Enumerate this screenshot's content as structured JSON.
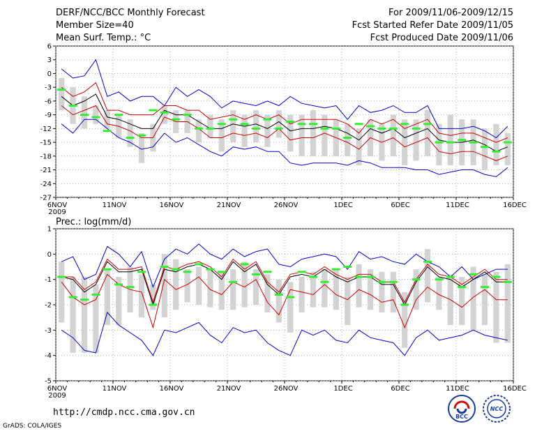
{
  "header": {
    "title": "DERF/NCC/BCC Monthly Forecast",
    "member_size": "Member Size=40",
    "for_period": "For 2009/11/06-2009/12/15",
    "fcst_started": "Fcst Started Refer Date 2009/11/05",
    "fcst_produced": "Fcst Produced Date 2009/11/06"
  },
  "footer": {
    "url": "http://cmdp.ncc.cma.gov.cn",
    "credit": "GrADS: COLA/IGES",
    "logo_bcc": "BCC",
    "logo_ncc": "NCC"
  },
  "colors": {
    "mean": "#000000",
    "sd": "#cc0000",
    "range": "#0000cc",
    "box": "#d3d3d3",
    "observed": "#33ee33"
  },
  "chart_data": [
    {
      "type": "line",
      "title": "Mean Surf. Temp.: °C",
      "ylim": [
        -27,
        6
      ],
      "yticks": [
        6,
        3,
        0,
        -3,
        -6,
        -9,
        -12,
        -15,
        -18,
        -21,
        -24,
        -27
      ],
      "x": [
        "6NOV",
        "7NOV",
        "8NOV",
        "9NOV",
        "10NOV",
        "11NOV",
        "12NOV",
        "13NOV",
        "14NOV",
        "15NOV",
        "16NOV",
        "17NOV",
        "18NOV",
        "19NOV",
        "20NOV",
        "21NOV",
        "22NOV",
        "23NOV",
        "24NOV",
        "25NOV",
        "26NOV",
        "27NOV",
        "28NOV",
        "29NOV",
        "30NOV",
        "1DEC",
        "2DEC",
        "3DEC",
        "4DEC",
        "5DEC",
        "6DEC",
        "7DEC",
        "8DEC",
        "9DEC",
        "10DEC",
        "11DEC",
        "12DEC",
        "13DEC",
        "14DEC",
        "15DEC"
      ],
      "xticks": [
        "6NOV",
        "11NOV",
        "16NOV",
        "21NOV",
        "26NOV",
        "1DEC",
        "6DEC",
        "11DEC",
        "16DEC"
      ],
      "xtick_year": "2009",
      "series": [
        {
          "name": "max",
          "values": [
            1,
            -1,
            -0.5,
            3,
            -5,
            -4,
            -6,
            -5,
            -5,
            -7,
            -3,
            -5,
            -3.5,
            -5,
            -7.5,
            -6,
            -6.5,
            -7,
            -6,
            -7,
            -5,
            -6.5,
            -7,
            -7.5,
            -7,
            -10,
            -7,
            -8.5,
            -8,
            -7,
            -8.5,
            -8.5,
            -7,
            -12,
            -12,
            -12,
            -11.5,
            -12.5,
            -14,
            -11.5
          ]
        },
        {
          "name": "sd_upper",
          "values": [
            -3,
            -5,
            -4,
            -2,
            -8,
            -8,
            -9,
            -9,
            -9,
            -7,
            -7,
            -8,
            -8,
            -10,
            -9.5,
            -9,
            -10,
            -9,
            -10,
            -9,
            -11,
            -10,
            -10,
            -10,
            -10,
            -11,
            -13,
            -10,
            -11,
            -10,
            -12,
            -11,
            -10,
            -13,
            -13.5,
            -13,
            -13,
            -14,
            -15,
            -14
          ]
        },
        {
          "name": "mean",
          "values": [
            -5,
            -7,
            -6,
            -4.5,
            -9.5,
            -10,
            -11,
            -12,
            -12,
            -8,
            -9,
            -9,
            -10.5,
            -12,
            -12,
            -11,
            -11.5,
            -11,
            -12,
            -10.5,
            -12.5,
            -12,
            -12,
            -11.5,
            -12,
            -13,
            -14.5,
            -12,
            -13,
            -12,
            -14,
            -13,
            -12,
            -14.5,
            -15,
            -15,
            -14.5,
            -15.5,
            -17,
            -16
          ]
        },
        {
          "name": "sd_lower",
          "values": [
            -7,
            -9,
            -8,
            -7,
            -11,
            -11.5,
            -12.5,
            -14,
            -14,
            -9.5,
            -10.5,
            -10.5,
            -12,
            -14,
            -14,
            -13,
            -13.5,
            -13,
            -14,
            -12,
            -14.5,
            -14,
            -14,
            -13,
            -14,
            -15,
            -16.5,
            -14,
            -15,
            -14,
            -16,
            -15,
            -14,
            -17,
            -17.5,
            -17,
            -17,
            -18,
            -19,
            -18
          ]
        },
        {
          "name": "min",
          "values": [
            -11,
            -13,
            -10,
            -10,
            -12,
            -14,
            -15,
            -16.5,
            -16,
            -13,
            -15,
            -14,
            -15.5,
            -17,
            -18,
            -16,
            -16.5,
            -16,
            -17,
            -17,
            -19.5,
            -20,
            -19.5,
            -19.5,
            -19.5,
            -20,
            -19,
            -19.5,
            -20.5,
            -20.5,
            -20.5,
            -21,
            -21,
            -22,
            -21.5,
            -21,
            -21,
            -22,
            -22.5,
            -20.5
          ]
        },
        {
          "name": "box_top",
          "values": [
            -1,
            -3,
            -5,
            -7,
            -8,
            -9,
            -10,
            -13,
            -11,
            -7,
            -8,
            -8,
            -10,
            -9,
            -10,
            -8,
            -9,
            -8,
            -9,
            -8,
            -9,
            -9,
            -8,
            -9,
            -10,
            -11,
            -12,
            -10,
            -11,
            -9,
            -10,
            -10,
            -8,
            -11,
            -9,
            -10,
            -10,
            -12,
            -11,
            -13
          ]
        },
        {
          "name": "box_bottom",
          "values": [
            -8,
            -11,
            -12,
            -11,
            -12,
            -14,
            -16,
            -19.5,
            -17,
            -11,
            -13,
            -13,
            -15,
            -14,
            -17,
            -15,
            -16,
            -15,
            -16,
            -14,
            -17,
            -18,
            -18,
            -18,
            -18,
            -18,
            -20,
            -18,
            -19,
            -18,
            -20,
            -19,
            -18,
            -20,
            -20,
            -20,
            -20,
            -21,
            -20,
            -20
          ]
        },
        {
          "name": "observed",
          "values": [
            -3.5,
            -7,
            -9,
            -9.5,
            -12.5,
            -9,
            -14,
            -13.5,
            -8,
            -8.5,
            -10,
            -9,
            -12,
            -12,
            -11,
            -10,
            -11,
            -12,
            -10,
            -12,
            -10.5,
            -11,
            -11,
            -12,
            -12,
            -14,
            -11,
            -11.5,
            -12,
            -12,
            -11,
            -12,
            -11,
            -15,
            -15,
            -14.5,
            -15,
            -16,
            -17,
            -15
          ]
        }
      ]
    },
    {
      "type": "line",
      "title": "Prec.: log(mm/d)",
      "ylim": [
        -5,
        1
      ],
      "yticks": [
        1,
        0,
        -1,
        -2,
        -3,
        -4,
        -5
      ],
      "x": [
        "6NOV",
        "7NOV",
        "8NOV",
        "9NOV",
        "10NOV",
        "11NOV",
        "12NOV",
        "13NOV",
        "14NOV",
        "15NOV",
        "16NOV",
        "17NOV",
        "18NOV",
        "19NOV",
        "20NOV",
        "21NOV",
        "22NOV",
        "23NOV",
        "24NOV",
        "25NOV",
        "26NOV",
        "27NOV",
        "28NOV",
        "29NOV",
        "30NOV",
        "1DEC",
        "2DEC",
        "3DEC",
        "4DEC",
        "5DEC",
        "6DEC",
        "7DEC",
        "8DEC",
        "9DEC",
        "10DEC",
        "11DEC",
        "12DEC",
        "13DEC",
        "14DEC",
        "15DEC"
      ],
      "xticks": [
        "6NOV",
        "11NOV",
        "16NOV",
        "21NOV",
        "26NOV",
        "1DEC",
        "6DEC",
        "11DEC",
        "16DEC"
      ],
      "xtick_year": "2009",
      "series": [
        {
          "name": "max",
          "values": [
            -0.3,
            -0.1,
            -1,
            -0.8,
            0.3,
            0,
            -0.5,
            0.1,
            -1.3,
            -0.2,
            0.2,
            0,
            0.4,
            0,
            -0.2,
            0.2,
            -0.1,
            0.1,
            0.2,
            -0.4,
            -0.5,
            -0.2,
            -0.1,
            0,
            -0.1,
            -0.6,
            0.1,
            -0.2,
            -0.1,
            -0.3,
            -0.4,
            0,
            -0.3,
            -0.5,
            -0.9,
            -0.5,
            -1,
            -0.8,
            -0.6,
            -0.6
          ]
        },
        {
          "name": "sd_upper",
          "values": [
            -0.9,
            -0.9,
            -1.4,
            -1.1,
            -0.2,
            -0.6,
            -0.6,
            -0.5,
            -1.9,
            -0.5,
            -0.6,
            -0.4,
            -0.3,
            -0.5,
            -0.9,
            -0.2,
            -0.6,
            -0.3,
            -1.1,
            -1.5,
            -0.8,
            -0.7,
            -0.8,
            -0.5,
            -0.8,
            -1,
            -0.8,
            -0.8,
            -1.1,
            -1.1,
            -1.9,
            -1,
            -0.4,
            -0.8,
            -0.9,
            -1.2,
            -0.9,
            -0.6,
            -1,
            -1
          ]
        },
        {
          "name": "mean",
          "values": [
            -0.9,
            -1,
            -1.5,
            -1.2,
            -0.3,
            -0.7,
            -0.7,
            -0.6,
            -2,
            -0.6,
            -0.7,
            -0.5,
            -0.4,
            -0.6,
            -1,
            -0.3,
            -0.7,
            -0.4,
            -1.2,
            -1.6,
            -0.9,
            -0.8,
            -0.9,
            -0.6,
            -0.9,
            -1.1,
            -0.9,
            -0.9,
            -1.2,
            -1.2,
            -2,
            -1.1,
            -0.5,
            -0.9,
            -1,
            -1.3,
            -1,
            -0.7,
            -1.1,
            -1.1
          ]
        },
        {
          "name": "sd_lower",
          "values": [
            -1.1,
            -1.7,
            -2,
            -1.8,
            -0.8,
            -1.2,
            -1.4,
            -1.5,
            -2.9,
            -1,
            -1.4,
            -1.2,
            -0.9,
            -1.4,
            -1.6,
            -1.1,
            -1.3,
            -1,
            -1.9,
            -2.4,
            -1.4,
            -1.5,
            -1.6,
            -1.2,
            -1.6,
            -1.8,
            -1.4,
            -1.6,
            -1.9,
            -1.8,
            -2.9,
            -1.8,
            -1.3,
            -1.6,
            -1.8,
            -2.1,
            -1.7,
            -1.4,
            -1.8,
            -1.8
          ]
        },
        {
          "name": "min",
          "values": [
            -3,
            -3.3,
            -3.8,
            -3.9,
            -2.3,
            -2.8,
            -3.1,
            -3.4,
            -4,
            -3,
            -3.1,
            -2.9,
            -2.7,
            -3.2,
            -3.5,
            -2.9,
            -3.1,
            -3,
            -3.5,
            -3.8,
            -4,
            -3,
            -3.2,
            -3,
            -3.4,
            -3.5,
            -3,
            -3.3,
            -3.4,
            -3.5,
            -4,
            -3.3,
            -3,
            -3.4,
            -3.3,
            -3.2,
            -3,
            -3.2,
            -3.3,
            -3.4
          ]
        },
        {
          "name": "box_top",
          "values": [
            -0.3,
            -0.9,
            -0.9,
            -1.2,
            -0.6,
            -0.9,
            -0.5,
            -0.8,
            -1.2,
            0,
            -0.2,
            -0.6,
            -0.5,
            -0.6,
            -0.7,
            -0.6,
            -0.3,
            -0.6,
            -0.8,
            -1,
            -1.1,
            -0.9,
            -0.7,
            -0.6,
            -0.6,
            -0.9,
            -0.4,
            -0.6,
            -0.7,
            -0.7,
            -1.5,
            -0.6,
            0.2,
            -0.9,
            -0.8,
            -0.9,
            -0.5,
            -0.8,
            -0.7,
            -0.4
          ]
        },
        {
          "name": "box_bottom",
          "values": [
            -2.7,
            -3.9,
            -3.9,
            -3.9,
            -2.8,
            -2.8,
            -2.3,
            -2.5,
            -2.2,
            -2.5,
            -2.2,
            -1.9,
            -2,
            -2.1,
            -2.2,
            -2.2,
            -2.1,
            -2,
            -2.3,
            -2.7,
            -3.1,
            -2.3,
            -2.1,
            -2.1,
            -2.2,
            -2.8,
            -2.1,
            -2.2,
            -2.3,
            -2.3,
            -3.7,
            -2.2,
            -1.9,
            -2.2,
            -2.8,
            -2.8,
            -3,
            -2.8,
            -3.5,
            -3.5
          ]
        },
        {
          "name": "observed",
          "values": [
            -0.9,
            -1.7,
            -1.8,
            -1.6,
            -0.6,
            -1.2,
            -1.3,
            -0.7,
            -2,
            -0.5,
            -0.6,
            -0.7,
            -0.4,
            -0.6,
            -0.7,
            -1.1,
            -0.4,
            -0.8,
            -0.7,
            -1.6,
            -1.7,
            -0.7,
            -0.9,
            -1.1,
            -0.6,
            -0.5,
            -0.9,
            -0.9,
            -1.1,
            -1.1,
            -2,
            -1,
            -0.3,
            -1,
            -0.9,
            -1.3,
            -0.8,
            -1.3,
            -0.9,
            -1.1
          ]
        }
      ]
    }
  ]
}
